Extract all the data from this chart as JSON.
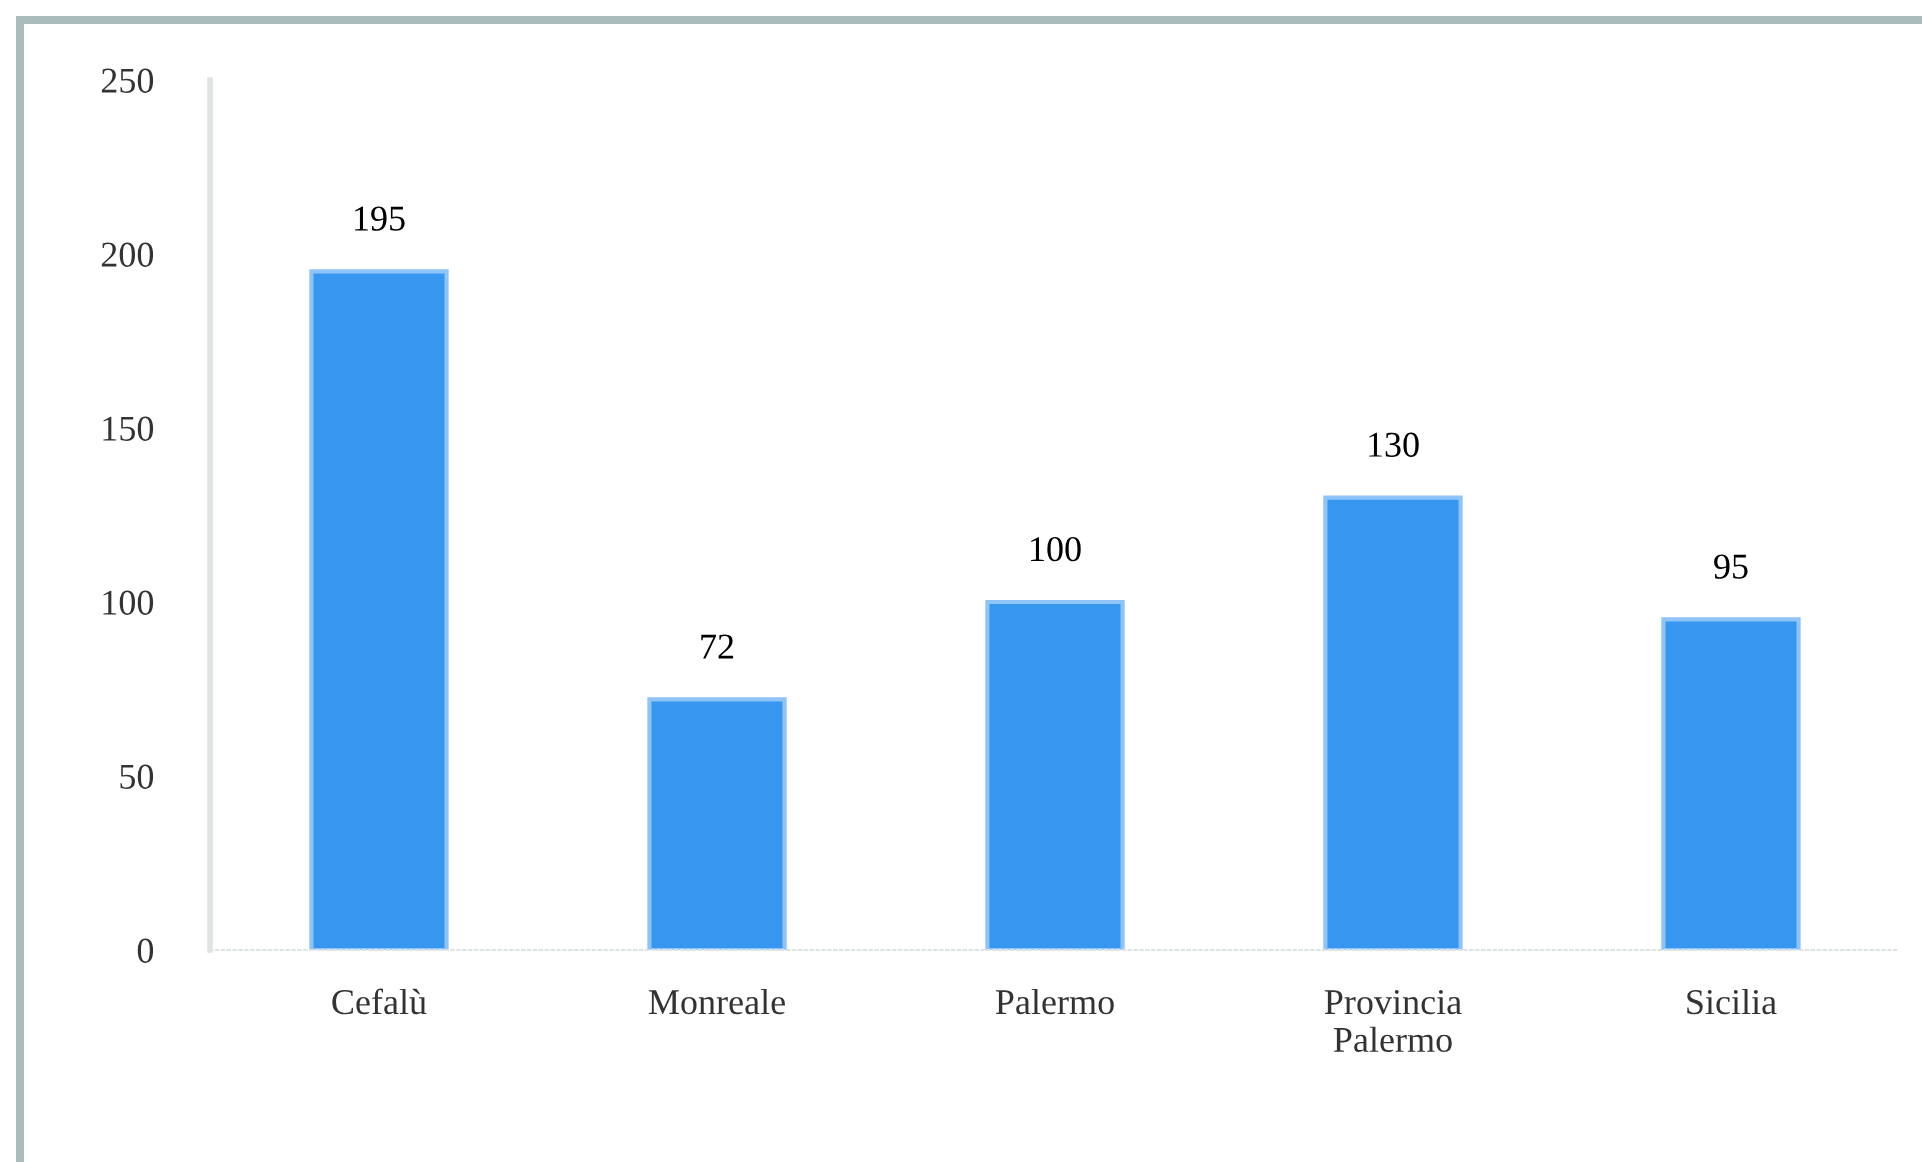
{
  "chart_data": {
    "type": "bar",
    "categories": [
      "Cefalù",
      "Monreale",
      "Palermo",
      "Provincia\nPalermo",
      "Sicilia"
    ],
    "values": [
      195,
      72,
      100,
      130,
      95
    ],
    "color": "#3797f0",
    "ylim": [
      0,
      250
    ],
    "yticks": [
      0,
      50,
      100,
      150,
      200,
      250
    ],
    "grid": false,
    "data_labels": true
  }
}
